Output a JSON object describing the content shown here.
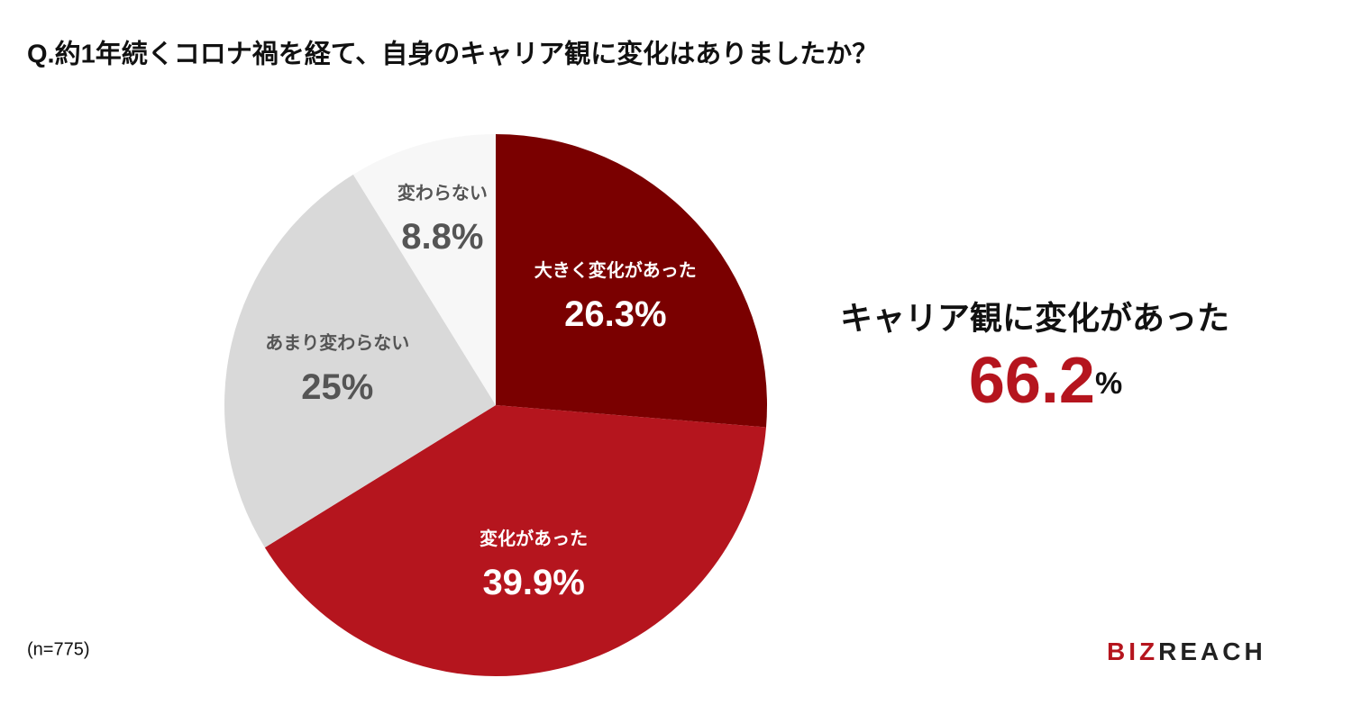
{
  "chart_data": {
    "type": "pie",
    "title": "Q.約1年続くコロナ禍を経て、自身のキャリア観に変化はありましたか？",
    "categories": [
      "大きく変化があった",
      "変化があった",
      "あまり変わらない",
      "変わらない"
    ],
    "values": [
      26.3,
      39.9,
      25,
      8.8
    ],
    "value_labels": [
      "26.3%",
      "39.9%",
      "25%",
      "8.8%"
    ],
    "colors": [
      "#7a0000",
      "#b5151e",
      "#d9d9d9",
      "#f7f7f7"
    ],
    "label_colors": [
      "#ffffff",
      "#ffffff",
      "#555555",
      "#555555"
    ],
    "summary": {
      "label": "キャリア観に変化があった",
      "value": "66.2",
      "unit": "%"
    },
    "note": "(n=775)",
    "logo": {
      "accent": "BIZ",
      "rest": "REACH"
    }
  }
}
